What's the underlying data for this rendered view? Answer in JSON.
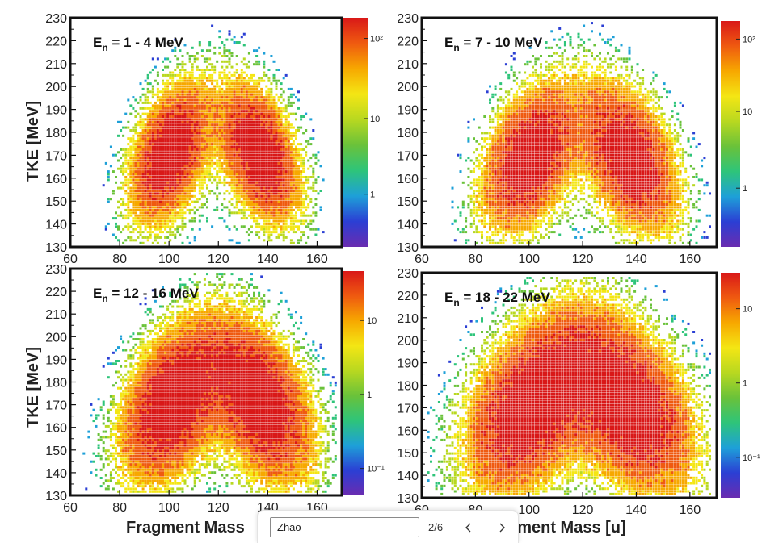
{
  "figure": {
    "panels": [
      {
        "energy_label": "E",
        "energy_sub": "n",
        "energy_range": " = 1 - 4 MeV",
        "colorbar_ticks": [
          "10²",
          "10",
          "1"
        ],
        "colorbar_tick_pos": [
          0.09,
          0.44,
          0.77
        ]
      },
      {
        "energy_label": "E",
        "energy_sub": "n",
        "energy_range": " = 7 - 10 MeV",
        "colorbar_ticks": [
          "10²",
          "10",
          "1"
        ],
        "colorbar_tick_pos": [
          0.08,
          0.4,
          0.74
        ]
      },
      {
        "energy_label": "E",
        "energy_sub": "n",
        "energy_range": " = 12 - 16 MeV",
        "colorbar_ticks": [
          "10",
          "1",
          "10⁻¹"
        ],
        "colorbar_tick_pos": [
          0.22,
          0.55,
          0.88
        ]
      },
      {
        "energy_label": "E",
        "energy_sub": "n",
        "energy_range": " = 18 - 22 MeV",
        "colorbar_ticks": [
          "10",
          "1",
          "10⁻¹"
        ],
        "colorbar_tick_pos": [
          0.16,
          0.49,
          0.82
        ]
      }
    ],
    "ylabel": "TKE [MeV]",
    "xlabel_left": "Fragment Mass",
    "xlabel_right": "gment Mass [u]",
    "x_ticks": [
      "60",
      "80",
      "100",
      "120",
      "140",
      "160"
    ],
    "y_ticks": [
      "130",
      "140",
      "150",
      "160",
      "170",
      "180",
      "190",
      "200",
      "210",
      "220",
      "230"
    ],
    "colorscale": [
      "#6a2cb0",
      "#2b3fd4",
      "#1ea0d8",
      "#2ec47a",
      "#6ac23a",
      "#b8d820",
      "#f4e614",
      "#f7a800",
      "#ef5a10",
      "#d91818"
    ]
  },
  "chart_data": {
    "type": "heatmap",
    "xlabel": "Fragment Mass [u]",
    "ylabel": "TKE [MeV]",
    "xlim": [
      60,
      170
    ],
    "ylim": [
      130,
      230
    ],
    "x_ticks": [
      60,
      80,
      100,
      120,
      140,
      160
    ],
    "y_ticks": [
      130,
      140,
      150,
      160,
      170,
      180,
      190,
      200,
      210,
      220,
      230
    ],
    "colorbar_scale": "log",
    "panels": [
      {
        "label": "En = 1 - 4 MeV",
        "colorbar_ticks": [
          "10²",
          "10",
          "1"
        ],
        "peaks": [
          {
            "mass": 100,
            "tke": 172
          },
          {
            "mass": 136,
            "tke": 172
          }
        ]
      },
      {
        "label": "En = 7 - 10 MeV",
        "colorbar_ticks": [
          "10²",
          "10",
          "1"
        ],
        "peaks": [
          {
            "mass": 100,
            "tke": 170
          },
          {
            "mass": 137,
            "tke": 170
          }
        ]
      },
      {
        "label": "En = 12 - 16 MeV",
        "colorbar_ticks": [
          "10",
          "1",
          "10⁻¹"
        ],
        "peaks": [
          {
            "mass": 101,
            "tke": 172
          },
          {
            "mass": 137,
            "tke": 172
          }
        ]
      },
      {
        "label": "En = 18 - 22 MeV",
        "colorbar_ticks": [
          "10",
          "1",
          "10⁻¹"
        ],
        "peaks": [
          {
            "mass": 100,
            "tke": 172
          },
          {
            "mass": 137,
            "tke": 172
          }
        ]
      }
    ]
  },
  "find_bar": {
    "query": "Zhao",
    "match_count": "2/6",
    "prev_icon": "chevron-left-icon",
    "next_icon": "chevron-right-icon"
  }
}
